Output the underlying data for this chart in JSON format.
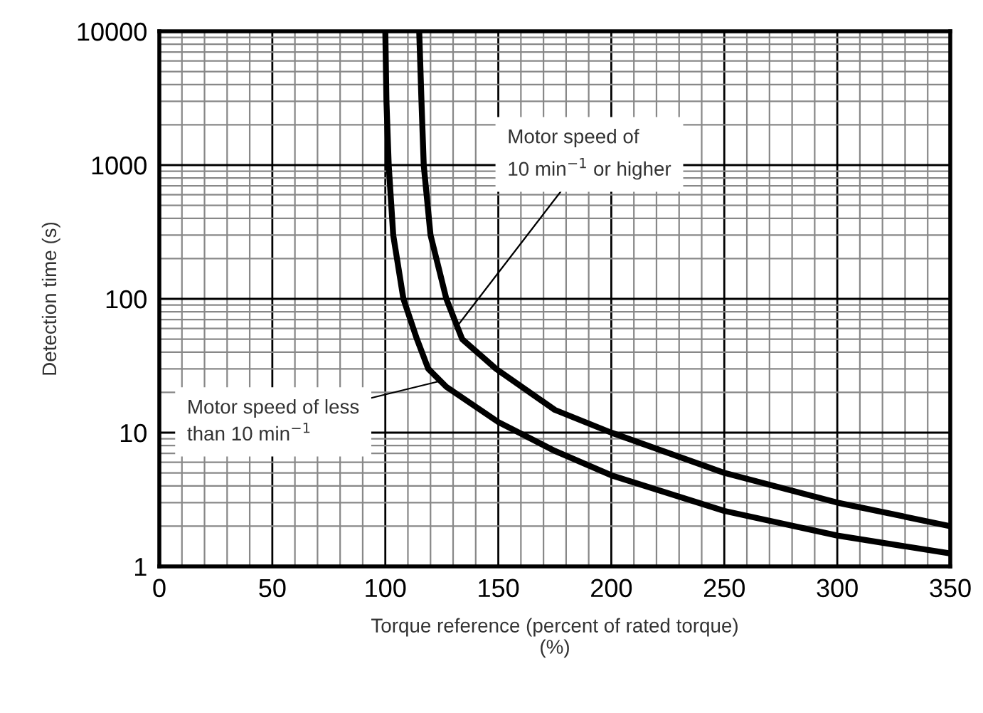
{
  "chart_data": {
    "type": "line",
    "xlabel": "Torque reference (percent of rated torque)\n(%)",
    "ylabel": "Detection time (s)",
    "log": "y",
    "grid": true,
    "marker": "none",
    "line_style": "solid",
    "xlim": [
      0,
      350
    ],
    "xticks": [
      0,
      50,
      100,
      150,
      200,
      250,
      300,
      350
    ],
    "ylim": [
      1,
      10000
    ],
    "yticks": [
      1,
      10,
      100,
      1000,
      10000
    ],
    "series": [
      {
        "color": "#000000",
        "x": [
          100,
          100.5,
          101.5,
          103.5,
          108,
          114,
          119,
          127,
          150,
          175,
          200,
          250,
          300,
          350
        ],
        "values": [
          10000,
          3000,
          1000,
          300,
          100,
          50,
          30,
          22,
          12,
          7.3,
          4.8,
          2.6,
          1.7,
          1.25
        ]
      },
      {
        "color": "#000000",
        "x": [
          115,
          116,
          117,
          120,
          127,
          134,
          149,
          175,
          200,
          250,
          300,
          350
        ],
        "values": [
          10000,
          3000,
          1000,
          300,
          100,
          50,
          30,
          14.8,
          10,
          5,
          3,
          2
        ]
      }
    ],
    "annotations": [
      {
        "text": "Motor speed of\n10 min$^{−1}$ or higher",
        "x": 131,
        "y": 60
      },
      {
        "text": "Motor speed of less\nthan 10 min$^{−1}$",
        "x": 123,
        "y": 24
      }
    ]
  }
}
